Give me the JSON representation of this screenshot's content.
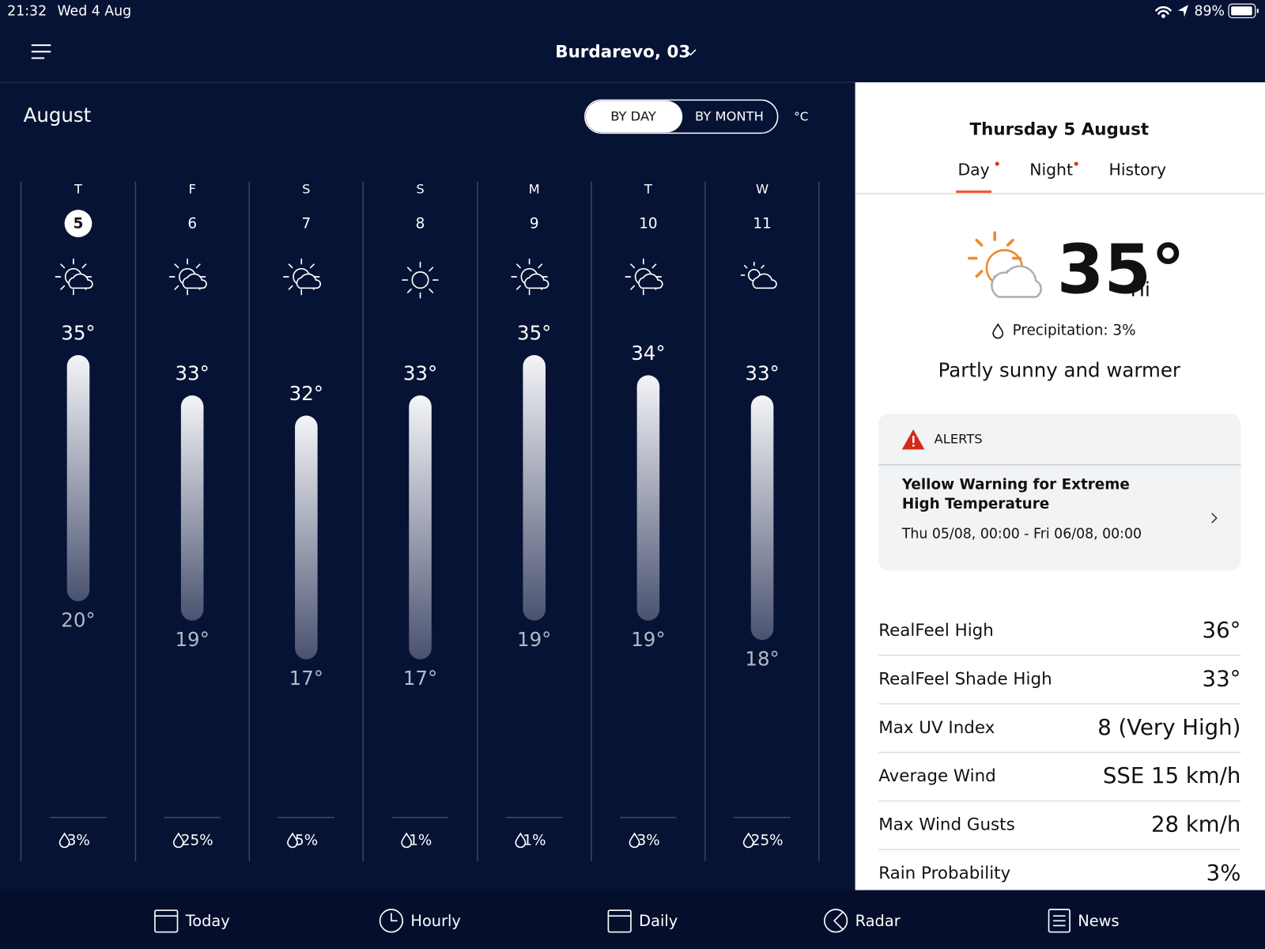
{
  "status_bar": {
    "time": "21:32",
    "date": "Wed 4 Aug",
    "battery": "89%"
  },
  "header": {
    "location": "Burdarevo, 03"
  },
  "forecast": {
    "month": "August",
    "toggle": [
      "BY DAY",
      "BY MONTH"
    ],
    "unit": "°C",
    "days": [
      {
        "weekday": "T",
        "date": "5",
        "high": "35°",
        "low": "20°",
        "precipitation": "3%"
      },
      {
        "weekday": "F",
        "date": "6",
        "high": "33°",
        "low": "19°",
        "precipitation": "25%"
      },
      {
        "weekday": "S",
        "date": "7",
        "high": "32°",
        "low": "17°",
        "precipitation": "5%"
      },
      {
        "weekday": "S",
        "date": "8",
        "high": "33°",
        "low": "17°",
        "precipitation": "1%"
      },
      {
        "weekday": "M",
        "date": "9",
        "high": "35°",
        "low": "19°",
        "precipitation": "1%"
      },
      {
        "weekday": "T",
        "date": "10",
        "high": "34°",
        "low": "19°",
        "precipitation": "3%"
      },
      {
        "weekday": "W",
        "date": "11",
        "high": "33°",
        "low": "18°",
        "precipitation": "25%"
      }
    ]
  },
  "detail": {
    "title": "Thursday 5 August",
    "tabs": [
      "Day",
      "Night",
      "History"
    ],
    "temperature": "35°",
    "temperature_note": "Hi",
    "precipitation": "Precipitation: 3%",
    "summary": "Partly sunny and warmer",
    "alerts": {
      "heading": "ALERTS",
      "title": "Yellow Warning for Extreme High Temperature",
      "time": "Thu 05/08, 00:00 - Fri 06/08, 00:00"
    },
    "rows": [
      [
        "RealFeel High",
        "36°"
      ],
      [
        "RealFeel Shade High",
        "33°"
      ],
      [
        "Max UV Index",
        "8 (Very High)"
      ],
      [
        "Average Wind",
        "SSE 15 km/h"
      ],
      [
        "Max Wind Gusts",
        "28 km/h"
      ],
      [
        "Rain Probability",
        "3%"
      ]
    ]
  },
  "nav": [
    "Today",
    "Hourly",
    "Daily",
    "Radar",
    "News"
  ]
}
